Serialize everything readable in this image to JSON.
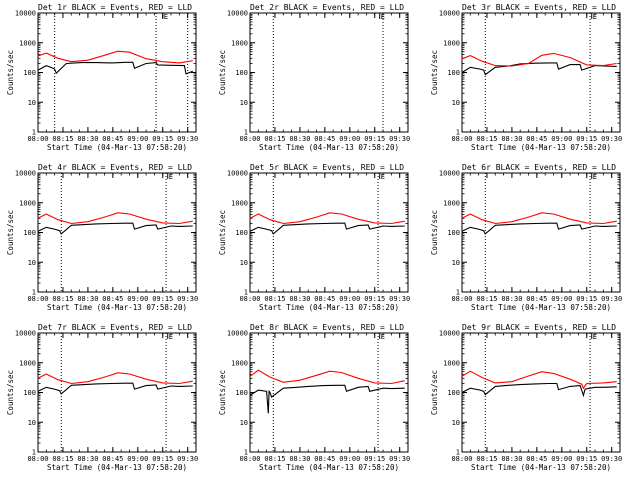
{
  "chart_data": [
    {
      "type": "line",
      "title": "Det 1r BLACK = Events, RED = LLD",
      "xlabel": "Start Time (04-Mar-13 07:58:20)",
      "ylabel": "Counts/sec",
      "yscale": "log",
      "ylim": [
        1,
        10000
      ],
      "xlim": [
        "08:00",
        "09:35"
      ],
      "x_ticks": [
        "08:00",
        "08:15",
        "08:30",
        "08:45",
        "09:00",
        "09:15",
        "09:30"
      ],
      "y_ticks": [
        "1",
        "10",
        "100",
        "1000",
        "10000"
      ],
      "vlines": [
        "08:10",
        "09:11",
        "09:30"
      ],
      "marker": {
        "x": "09:15",
        "label": "E"
      },
      "series": [
        {
          "name": "Events",
          "color": "#000000",
          "x": [
            "08:00",
            "08:05",
            "08:09",
            "08:10",
            "08:11",
            "08:17",
            "08:26",
            "08:35",
            "08:44",
            "08:53",
            "08:57",
            "08:58",
            "09:05",
            "09:11",
            "09:12",
            "09:20",
            "09:28",
            "09:29",
            "09:33"
          ],
          "y": [
            120,
            170,
            140,
            130,
            95,
            200,
            215,
            215,
            210,
            220,
            220,
            140,
            200,
            215,
            180,
            175,
            170,
            90,
            110
          ]
        },
        {
          "name": "LLD",
          "color": "#ff0000",
          "x": [
            "08:00",
            "08:05",
            "08:12",
            "08:20",
            "08:30",
            "08:40",
            "08:48",
            "08:55",
            "09:05",
            "09:15",
            "09:25",
            "09:33"
          ],
          "y": [
            360,
            450,
            300,
            230,
            260,
            380,
            520,
            480,
            290,
            230,
            210,
            250
          ]
        }
      ]
    },
    {
      "type": "line",
      "title": "Det 2r BLACK = Events, RED = LLD",
      "xlabel": "Start Time (04-Mar-13 07:58:20)",
      "ylabel": "Counts/sec",
      "yscale": "log",
      "ylim": [
        1,
        10000
      ],
      "xlim": [
        "08:00",
        "09:35"
      ],
      "x_ticks": [
        "08:00",
        "08:15",
        "08:30",
        "08:45",
        "09:00",
        "09:15",
        "09:30"
      ],
      "y_ticks": [
        "1",
        "10",
        "100",
        "1000",
        "10000"
      ],
      "vlines": [
        "08:14",
        "09:20"
      ],
      "marker": {
        "x": "09:18",
        "label": "E"
      },
      "series": []
    },
    {
      "type": "line",
      "title": "Det 3r BLACK = Events, RED = LLD",
      "xlabel": "Start Time (04-Mar-13 07:58:20)",
      "ylabel": "Counts/sec",
      "yscale": "log",
      "ylim": [
        1,
        10000
      ],
      "xlim": [
        "08:00",
        "09:35"
      ],
      "x_ticks": [
        "08:00",
        "08:15",
        "08:30",
        "08:45",
        "09:00",
        "09:15",
        "09:30"
      ],
      "y_ticks": [
        "1",
        "10",
        "100",
        "1000",
        "10000"
      ],
      "vlines": [
        "08:14",
        "09:17"
      ],
      "marker": {
        "x": "09:18",
        "label": "E"
      },
      "series": [
        {
          "name": "Events",
          "color": "#000000",
          "x": [
            "08:00",
            "08:05",
            "08:11",
            "08:13",
            "08:14",
            "08:20",
            "08:28",
            "08:35",
            "08:44",
            "08:52",
            "08:57",
            "08:58",
            "09:05",
            "09:11",
            "09:12",
            "09:20",
            "09:25",
            "09:33"
          ],
          "y": [
            100,
            150,
            130,
            120,
            85,
            150,
            165,
            195,
            205,
            210,
            210,
            130,
            185,
            185,
            120,
            170,
            165,
            160
          ]
        },
        {
          "name": "LLD",
          "color": "#ff0000",
          "x": [
            "08:00",
            "08:05",
            "08:12",
            "08:20",
            "08:30",
            "08:40",
            "08:48",
            "08:55",
            "09:05",
            "09:15",
            "09:25",
            "09:33"
          ],
          "y": [
            290,
            370,
            240,
            170,
            165,
            200,
            380,
            440,
            320,
            180,
            170,
            200
          ]
        }
      ]
    },
    {
      "type": "line",
      "title": "Det 4r BLACK = Events, RED = LLD",
      "xlabel": "Start Time (04-Mar-13 07:58:20)",
      "ylabel": "Counts/sec",
      "yscale": "log",
      "ylim": [
        1,
        10000
      ],
      "xlim": [
        "08:00",
        "09:35"
      ],
      "x_ticks": [
        "08:00",
        "08:15",
        "08:30",
        "08:45",
        "09:00",
        "09:15",
        "09:30"
      ],
      "y_ticks": [
        "1",
        "10",
        "100",
        "1000",
        "10000"
      ],
      "vlines": [
        "08:14",
        "09:17"
      ],
      "marker": {
        "x": "09:18",
        "label": "E"
      },
      "series": [
        {
          "name": "Events",
          "color": "#000000",
          "x": [
            "08:00",
            "08:05",
            "08:11",
            "08:13",
            "08:14",
            "08:20",
            "08:28",
            "08:35",
            "08:44",
            "08:52",
            "08:57",
            "08:58",
            "09:05",
            "09:11",
            "09:12",
            "09:20",
            "09:25",
            "09:33"
          ],
          "y": [
            110,
            150,
            125,
            115,
            90,
            175,
            185,
            195,
            200,
            205,
            205,
            130,
            170,
            180,
            130,
            165,
            160,
            165
          ]
        },
        {
          "name": "LLD",
          "color": "#ff0000",
          "x": [
            "08:00",
            "08:05",
            "08:12",
            "08:20",
            "08:30",
            "08:40",
            "08:48",
            "08:55",
            "09:05",
            "09:15",
            "09:25",
            "09:33"
          ],
          "y": [
            300,
            420,
            270,
            200,
            230,
            330,
            460,
            420,
            280,
            210,
            200,
            240
          ]
        }
      ]
    },
    {
      "type": "line",
      "title": "Det 5r BLACK = Events, RED = LLD",
      "xlabel": "Start Time (04-Mar-13 07:58:20)",
      "ylabel": "Counts/sec",
      "yscale": "log",
      "ylim": [
        1,
        10000
      ],
      "xlim": [
        "08:00",
        "09:35"
      ],
      "x_ticks": [
        "08:00",
        "08:15",
        "08:30",
        "08:45",
        "09:00",
        "09:15",
        "09:30"
      ],
      "y_ticks": [
        "1",
        "10",
        "100",
        "1000",
        "10000"
      ],
      "vlines": [
        "08:14",
        "09:17"
      ],
      "marker": {
        "x": "09:18",
        "label": "E"
      },
      "series": [
        {
          "name": "Events",
          "color": "#000000",
          "x": [
            "08:00",
            "08:05",
            "08:11",
            "08:13",
            "08:14",
            "08:20",
            "08:28",
            "08:35",
            "08:44",
            "08:52",
            "08:57",
            "08:58",
            "09:05",
            "09:11",
            "09:12",
            "09:20",
            "09:25",
            "09:33"
          ],
          "y": [
            110,
            150,
            125,
            115,
            90,
            175,
            185,
            195,
            200,
            205,
            205,
            130,
            170,
            180,
            130,
            165,
            160,
            165
          ]
        },
        {
          "name": "LLD",
          "color": "#ff0000",
          "x": [
            "08:00",
            "08:05",
            "08:12",
            "08:20",
            "08:30",
            "08:40",
            "08:48",
            "08:55",
            "09:05",
            "09:15",
            "09:25",
            "09:33"
          ],
          "y": [
            300,
            420,
            270,
            200,
            230,
            330,
            460,
            420,
            280,
            210,
            200,
            240
          ]
        }
      ]
    },
    {
      "type": "line",
      "title": "Det 6r BLACK = Events, RED = LLD",
      "xlabel": "Start Time (04-Mar-13 07:58:20)",
      "ylabel": "Counts/sec",
      "yscale": "log",
      "ylim": [
        1,
        10000
      ],
      "xlim": [
        "08:00",
        "09:35"
      ],
      "x_ticks": [
        "08:00",
        "08:15",
        "08:30",
        "08:45",
        "09:00",
        "09:15",
        "09:30"
      ],
      "y_ticks": [
        "1",
        "10",
        "100",
        "1000",
        "10000"
      ],
      "vlines": [
        "08:14",
        "09:17"
      ],
      "marker": {
        "x": "09:18",
        "label": "E"
      },
      "series": [
        {
          "name": "Events",
          "color": "#000000",
          "x": [
            "08:00",
            "08:05",
            "08:11",
            "08:13",
            "08:14",
            "08:20",
            "08:28",
            "08:35",
            "08:44",
            "08:52",
            "08:57",
            "08:58",
            "09:05",
            "09:11",
            "09:12",
            "09:20",
            "09:25",
            "09:33"
          ],
          "y": [
            110,
            150,
            125,
            115,
            90,
            175,
            185,
            195,
            200,
            205,
            205,
            130,
            170,
            180,
            130,
            165,
            160,
            165
          ]
        },
        {
          "name": "LLD",
          "color": "#ff0000",
          "x": [
            "08:00",
            "08:05",
            "08:12",
            "08:20",
            "08:30",
            "08:40",
            "08:48",
            "08:55",
            "09:05",
            "09:15",
            "09:25",
            "09:33"
          ],
          "y": [
            300,
            420,
            270,
            200,
            230,
            330,
            460,
            420,
            280,
            210,
            200,
            240
          ]
        }
      ]
    },
    {
      "type": "line",
      "title": "Det 7r BLACK = Events, RED = LLD",
      "xlabel": "Start Time (04-Mar-13 07:58:20)",
      "ylabel": "Counts/sec",
      "yscale": "log",
      "ylim": [
        1,
        10000
      ],
      "xlim": [
        "08:00",
        "09:35"
      ],
      "x_ticks": [
        "08:00",
        "08:15",
        "08:30",
        "08:45",
        "09:00",
        "09:15",
        "09:30"
      ],
      "y_ticks": [
        "1",
        "10",
        "100",
        "1000",
        "10000"
      ],
      "vlines": [
        "08:14",
        "09:17"
      ],
      "marker": {
        "x": "09:18",
        "label": "E"
      },
      "series": [
        {
          "name": "Events",
          "color": "#000000",
          "x": [
            "08:00",
            "08:05",
            "08:11",
            "08:13",
            "08:14",
            "08:20",
            "08:28",
            "08:35",
            "08:44",
            "08:52",
            "08:57",
            "08:58",
            "09:05",
            "09:11",
            "09:12",
            "09:20",
            "09:25",
            "09:33"
          ],
          "y": [
            110,
            150,
            125,
            115,
            90,
            175,
            185,
            195,
            200,
            205,
            205,
            130,
            170,
            180,
            130,
            165,
            160,
            165
          ]
        },
        {
          "name": "LLD",
          "color": "#ff0000",
          "x": [
            "08:00",
            "08:05",
            "08:12",
            "08:20",
            "08:30",
            "08:40",
            "08:48",
            "08:55",
            "09:05",
            "09:15",
            "09:25",
            "09:33"
          ],
          "y": [
            300,
            420,
            270,
            200,
            230,
            330,
            460,
            420,
            280,
            210,
            200,
            240
          ]
        }
      ]
    },
    {
      "type": "line",
      "title": "Det 8r BLACK = Events, RED = LLD",
      "xlabel": "Start Time (04-Mar-13 07:58:20)",
      "ylabel": "Counts/sec",
      "yscale": "log",
      "ylim": [
        1,
        10000
      ],
      "xlim": [
        "08:00",
        "09:35"
      ],
      "x_ticks": [
        "08:00",
        "08:15",
        "08:30",
        "08:45",
        "09:00",
        "09:15",
        "09:30"
      ],
      "y_ticks": [
        "1",
        "10",
        "100",
        "1000",
        "10000"
      ],
      "vlines": [
        "08:14",
        "09:17"
      ],
      "marker": {
        "x": "09:18",
        "label": "E"
      },
      "series": [
        {
          "name": "Events",
          "color": "#000000",
          "x": [
            "08:00",
            "08:05",
            "08:10",
            "08:11",
            "08:11.5",
            "08:12",
            "08:13",
            "08:20",
            "08:28",
            "08:35",
            "08:44",
            "08:52",
            "08:57",
            "08:58",
            "09:05",
            "09:11",
            "09:12",
            "09:20",
            "09:25",
            "09:33"
          ],
          "y": [
            80,
            120,
            110,
            20,
            110,
            100,
            70,
            140,
            150,
            160,
            170,
            175,
            175,
            110,
            150,
            160,
            110,
            140,
            135,
            140
          ]
        },
        {
          "name": "LLD",
          "color": "#ff0000",
          "x": [
            "08:00",
            "08:05",
            "08:12",
            "08:20",
            "08:30",
            "08:40",
            "08:48",
            "08:55",
            "09:05",
            "09:15",
            "09:25",
            "09:33"
          ],
          "y": [
            350,
            560,
            330,
            220,
            260,
            380,
            520,
            470,
            300,
            210,
            200,
            250
          ]
        }
      ]
    },
    {
      "type": "line",
      "title": "Det 9r BLACK = Events, RED = LLD",
      "xlabel": "Start Time (04-Mar-13 07:58:20)",
      "ylabel": "Counts/sec",
      "yscale": "log",
      "ylim": [
        1,
        10000
      ],
      "xlim": [
        "08:00",
        "09:35"
      ],
      "x_ticks": [
        "08:00",
        "08:15",
        "08:30",
        "08:45",
        "09:00",
        "09:15",
        "09:30"
      ],
      "y_ticks": [
        "1",
        "10",
        "100",
        "1000",
        "10000"
      ],
      "vlines": [
        "08:14",
        "09:17"
      ],
      "marker": {
        "x": "09:18",
        "label": "E"
      },
      "series": [
        {
          "name": "Events",
          "color": "#000000",
          "x": [
            "08:00",
            "08:05",
            "08:11",
            "08:13",
            "08:14",
            "08:20",
            "08:28",
            "08:35",
            "08:44",
            "08:52",
            "08:57",
            "08:58",
            "09:05",
            "09:11",
            "09:12",
            "09:13",
            "09:14",
            "09:20",
            "09:25",
            "09:33"
          ],
          "y": [
            100,
            140,
            120,
            110,
            85,
            160,
            175,
            185,
            195,
            200,
            200,
            125,
            160,
            170,
            120,
            80,
            130,
            150,
            150,
            155
          ]
        },
        {
          "name": "LLD",
          "color": "#ff0000",
          "x": [
            "08:00",
            "08:05",
            "08:12",
            "08:20",
            "08:30",
            "08:40",
            "08:48",
            "08:55",
            "09:05",
            "09:12",
            "09:13",
            "09:15",
            "09:25",
            "09:33"
          ],
          "y": [
            350,
            520,
            320,
            210,
            230,
            360,
            500,
            440,
            280,
            190,
            140,
            200,
            210,
            230
          ]
        }
      ]
    }
  ]
}
